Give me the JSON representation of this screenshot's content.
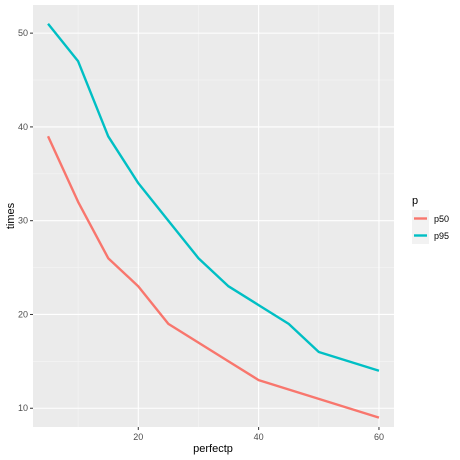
{
  "chart_data": {
    "type": "line",
    "title": "",
    "xlabel": "perfectp",
    "ylabel": "times",
    "xlim": [
      2.5,
      62.5
    ],
    "ylim": [
      8,
      53
    ],
    "xticks": [
      20,
      40,
      60
    ],
    "xticks_minor": [
      10,
      30,
      50
    ],
    "yticks": [
      10,
      20,
      30,
      40,
      50
    ],
    "yticks_minor": [
      15,
      25,
      35,
      45
    ],
    "grid": true,
    "legend": {
      "title": "p",
      "position": "right"
    },
    "x": [
      5,
      10,
      15,
      20,
      25,
      30,
      35,
      40,
      45,
      50,
      55,
      60
    ],
    "series": [
      {
        "name": "p50",
        "color": "#F8766D",
        "values": [
          39,
          32,
          26,
          23,
          19,
          17,
          15,
          13,
          12,
          11,
          10,
          9
        ]
      },
      {
        "name": "p95",
        "color": "#00BFC4",
        "values": [
          51,
          47,
          39,
          34,
          30,
          26,
          23,
          21,
          19,
          16,
          15,
          14
        ]
      }
    ],
    "colors": {
      "panel_background": "#EBEBEB",
      "grid_major": "#FFFFFF",
      "grid_minor": "#F5F5F5"
    }
  }
}
